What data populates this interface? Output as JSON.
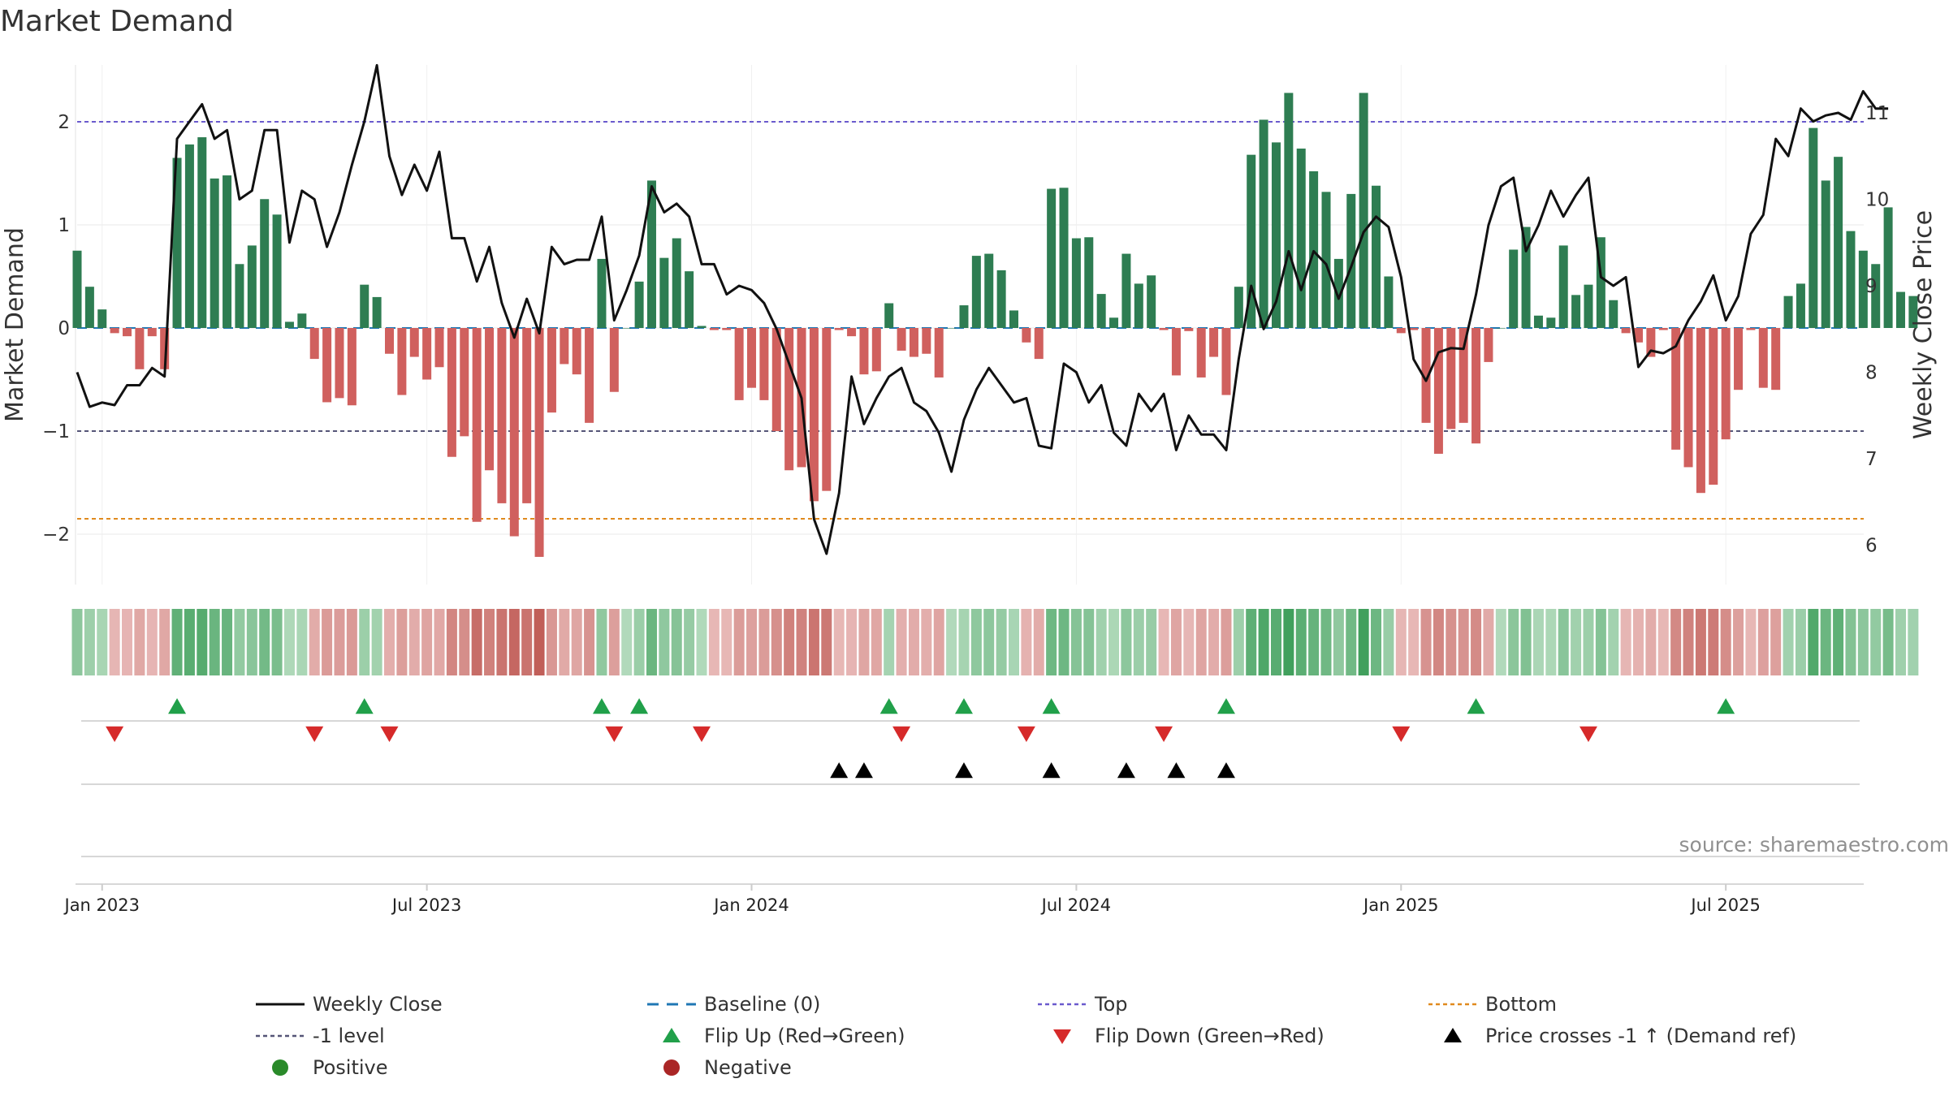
{
  "chart_data": {
    "type": "bar",
    "title": "Market Demand",
    "ylabel": "Market Demand",
    "y2label": "Weekly Close Price",
    "source": "source: sharemaestro.com",
    "ylim": [
      -2.5,
      2.55
    ],
    "y2lim": [
      5.8,
      11.3
    ],
    "yticks": [
      {
        "v": 2,
        "label": "2"
      },
      {
        "v": 1,
        "label": "1"
      },
      {
        "v": 0,
        "label": "0"
      },
      {
        "v": -1,
        "label": "−1"
      },
      {
        "v": -2,
        "label": "−2"
      }
    ],
    "y2ticks": [
      {
        "v": 6,
        "label": "6"
      },
      {
        "v": 7,
        "label": "7"
      },
      {
        "v": 8,
        "label": "8"
      },
      {
        "v": 9,
        "label": "9"
      },
      {
        "v": 10,
        "label": "10"
      },
      {
        "v": 11,
        "label": "11"
      }
    ],
    "xticks": [
      {
        "i": 2,
        "label": "Jan 2023"
      },
      {
        "i": 28,
        "label": "Jul 2023"
      },
      {
        "i": 54,
        "label": "Jan 2024"
      },
      {
        "i": 80,
        "label": "Jul 2024"
      },
      {
        "i": 106,
        "label": "Jan 2025"
      },
      {
        "i": 132,
        "label": "Jul 2025"
      }
    ],
    "levels": {
      "top": 2.0,
      "bottom": -1.85,
      "minus_one": -1.0,
      "baseline": 0
    },
    "demand": [
      0.75,
      0.4,
      0.18,
      -0.05,
      -0.08,
      -0.4,
      -0.08,
      -0.4,
      1.65,
      1.78,
      1.85,
      1.45,
      1.48,
      0.62,
      0.8,
      1.25,
      1.1,
      0.06,
      0.14,
      -0.3,
      -0.72,
      -0.68,
      -0.75,
      0.42,
      0.3,
      -0.25,
      -0.65,
      -0.28,
      -0.5,
      -0.38,
      -1.25,
      -1.05,
      -1.88,
      -1.38,
      -1.7,
      -2.02,
      -1.7,
      -2.22,
      -0.82,
      -0.35,
      -0.45,
      -0.92,
      0.67,
      -0.62,
      0.0,
      0.45,
      1.43,
      0.68,
      0.87,
      0.55,
      0.02,
      -0.02,
      -0.02,
      -0.7,
      -0.58,
      -0.7,
      -1.0,
      -1.38,
      -1.35,
      -1.68,
      -1.58,
      -0.02,
      -0.08,
      -0.45,
      -0.42,
      0.24,
      -0.22,
      -0.28,
      -0.25,
      -0.48,
      0.0,
      0.22,
      0.7,
      0.72,
      0.56,
      0.17,
      -0.14,
      -0.3,
      1.35,
      1.36,
      0.87,
      0.88,
      0.33,
      0.1,
      0.72,
      0.43,
      0.51,
      -0.02,
      -0.46,
      -0.03,
      -0.48,
      -0.28,
      -0.65,
      0.4,
      1.68,
      2.02,
      1.8,
      2.28,
      1.74,
      1.52,
      1.32,
      0.67,
      1.3,
      2.28,
      1.38,
      0.5,
      -0.05,
      -0.02,
      -0.92,
      -1.22,
      -0.98,
      -0.92,
      -1.12,
      -0.33,
      0.0,
      0.76,
      0.98,
      0.12,
      0.1,
      0.8,
      0.32,
      0.42,
      0.88,
      0.27,
      -0.05,
      -0.14,
      -0.28,
      -0.02,
      -1.18,
      -1.35,
      -1.6,
      -1.52,
      -1.08,
      -0.6,
      -0.02,
      -0.58,
      -0.6,
      0.31,
      0.43,
      1.94,
      1.43,
      1.66,
      0.94,
      0.75,
      0.62,
      1.17,
      0.35,
      0.31
    ],
    "close": [
      8.0,
      7.6,
      7.65,
      7.62,
      7.85,
      7.85,
      8.05,
      7.95,
      10.7,
      10.9,
      11.1,
      10.7,
      10.8,
      10.0,
      10.1,
      10.8,
      10.8,
      9.5,
      10.1,
      10.0,
      9.45,
      9.85,
      10.4,
      10.9,
      11.55,
      10.5,
      10.05,
      10.4,
      10.1,
      10.55,
      9.55,
      9.55,
      9.05,
      9.45,
      8.8,
      8.4,
      8.85,
      8.45,
      9.45,
      9.25,
      9.3,
      9.3,
      9.8,
      8.6,
      8.95,
      9.35,
      10.15,
      9.85,
      9.95,
      9.8,
      9.25,
      9.25,
      8.9,
      9.0,
      8.95,
      8.8,
      8.5,
      8.1,
      7.7,
      6.3,
      5.9,
      6.6,
      7.95,
      7.4,
      7.7,
      7.95,
      8.05,
      7.65,
      7.55,
      7.3,
      6.85,
      7.45,
      7.8,
      8.05,
      7.85,
      7.65,
      7.7,
      7.15,
      7.12,
      8.1,
      8.0,
      7.65,
      7.85,
      7.3,
      7.15,
      7.75,
      7.55,
      7.75,
      7.1,
      7.5,
      7.28,
      7.28,
      7.1,
      8.15,
      9.0,
      8.5,
      8.82,
      9.4,
      8.95,
      9.4,
      9.25,
      8.85,
      9.22,
      9.62,
      9.8,
      9.68,
      9.1,
      8.15,
      7.9,
      8.23,
      8.28,
      8.27,
      8.9,
      9.7,
      10.15,
      10.25,
      9.4,
      9.7,
      10.1,
      9.8,
      10.05,
      10.25,
      9.1,
      9.0,
      9.1,
      8.06,
      8.25,
      8.22,
      8.3,
      8.6,
      8.82,
      9.12,
      8.6,
      8.88,
      9.6,
      9.82,
      10.7,
      10.5,
      11.05,
      10.9,
      10.97,
      11.0,
      10.92,
      11.25,
      11.05,
      11.05
    ],
    "flip_up": [
      8,
      23,
      42,
      45,
      65,
      71,
      78,
      92,
      112,
      132
    ],
    "flip_down": [
      3,
      19,
      25,
      43,
      50,
      66,
      76,
      87,
      106,
      121
    ],
    "price_cross": [
      61,
      63,
      71,
      78,
      84,
      88,
      92
    ],
    "legend": [
      {
        "key": "weekly_close",
        "label": "Weekly Close",
        "marker": "line",
        "color": "#111111"
      },
      {
        "key": "baseline",
        "label": "Baseline (0)",
        "marker": "dash",
        "color": "#1f77b4"
      },
      {
        "key": "top",
        "label": "Top",
        "marker": "dotted",
        "color": "#6a5acd"
      },
      {
        "key": "bottom",
        "label": "Bottom",
        "marker": "dotted",
        "color": "#e08a1e"
      },
      {
        "key": "minus_one",
        "label": "-1 level",
        "marker": "dotted",
        "color": "#555577"
      },
      {
        "key": "flip_up",
        "label": "Flip Up (Red→Green)",
        "marker": "triangle-up",
        "color": "#21a04a"
      },
      {
        "key": "flip_down",
        "label": "Flip Down (Green→Red)",
        "marker": "triangle-down",
        "color": "#d62a2a"
      },
      {
        "key": "price_cross",
        "label": "Price crosses -1 ↑ (Demand ref)",
        "marker": "triangle-up",
        "color": "#000000"
      },
      {
        "key": "positive",
        "label": "Positive",
        "marker": "circle",
        "color": "#2a8a2a"
      },
      {
        "key": "negative",
        "label": "Negative",
        "marker": "circle",
        "color": "#aa2626"
      }
    ],
    "colors": {
      "positive_bar": "#2e7d52",
      "negative_bar": "#d0605e",
      "close_line": "#111111",
      "grid": "#e8e8e8"
    }
  }
}
